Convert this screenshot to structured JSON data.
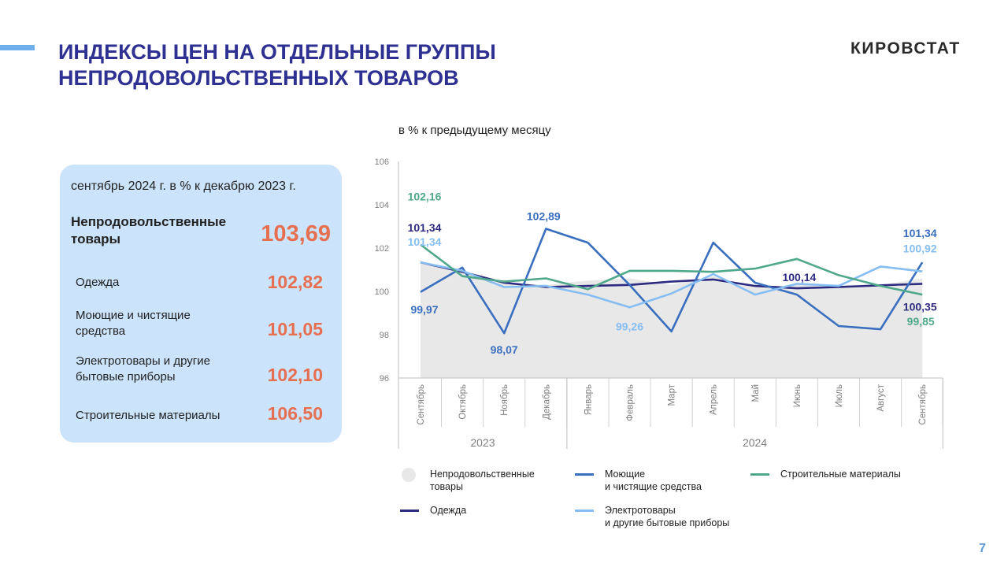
{
  "header": {
    "title_line1": "ИНДЕКСЫ ЦЕН НА ОТДЕЛЬНЫЕ ГРУППЫ",
    "title_line2": "НЕПРОДОВОЛЬСТВЕННЫХ ТОВАРОВ",
    "logo": "КИРОВСТАТ"
  },
  "page_number": "7",
  "summary": {
    "heading": "сентябрь 2024 г. в % к декабрю 2023 г.",
    "main": {
      "label_line1": "Непродовольственные",
      "label_line2": "товары",
      "value": "103,69"
    },
    "items": [
      {
        "label_line1": "Одежда",
        "label_line2": "",
        "value": "102,82"
      },
      {
        "label_line1": "Моющие и чистящие",
        "label_line2": "средства",
        "value": "101,05"
      },
      {
        "label_line1": "Электротовары и другие",
        "label_line2": "бытовые приборы",
        "value": "102,10"
      },
      {
        "label_line1": "Строительные материалы",
        "label_line2": "",
        "value": "106,50"
      }
    ]
  },
  "chart_data": {
    "type": "line",
    "subtitle": "в % к предыдущему месяцу",
    "categories": [
      "Сентябрь",
      "Октябрь",
      "Ноябрь",
      "Декабрь",
      "Январь",
      "Февраль",
      "Март",
      "Апрель",
      "Май",
      "Июнь",
      "Июль",
      "Август",
      "Сентябрь"
    ],
    "year_groups": [
      {
        "label": "2023",
        "from": 0,
        "to": 3
      },
      {
        "label": "2024",
        "from": 4,
        "to": 12
      }
    ],
    "ylim": [
      96,
      106
    ],
    "yticks": [
      96,
      98,
      100,
      102,
      104,
      106
    ],
    "series": [
      {
        "name": "Непродовольственные товары",
        "kind": "area",
        "color": "#e8e8e8",
        "values": [
          101.3,
          100.9,
          100.4,
          100.3,
          100.5,
          100.6,
          100.3,
          100.7,
          100.2,
          100.3,
          100.3,
          100.3,
          100.6
        ]
      },
      {
        "name": "Одежда",
        "kind": "line",
        "color": "#2e2a80",
        "values": [
          101.34,
          100.9,
          100.4,
          100.2,
          100.25,
          100.3,
          100.45,
          100.55,
          100.25,
          100.14,
          100.2,
          100.28,
          100.35
        ]
      },
      {
        "name": "Моющие и чистящие средства",
        "kind": "line",
        "color": "#3a6fbf",
        "values": [
          99.97,
          101.1,
          98.07,
          102.89,
          102.25,
          100.3,
          98.15,
          102.25,
          100.4,
          99.85,
          98.4,
          98.25,
          101.34
        ]
      },
      {
        "name": "Электротовары и другие бытовые приборы",
        "kind": "line",
        "color": "#86bdf2",
        "values": [
          101.34,
          100.95,
          100.2,
          100.25,
          99.85,
          99.26,
          99.9,
          100.8,
          99.85,
          100.35,
          100.25,
          101.15,
          100.92
        ]
      },
      {
        "name": "Строительные материалы",
        "kind": "line",
        "color": "#4fa88c",
        "values": [
          102.16,
          100.7,
          100.45,
          100.6,
          100.1,
          100.95,
          100.95,
          100.9,
          101.05,
          101.5,
          100.75,
          100.25,
          99.85
        ]
      }
    ],
    "data_labels": [
      {
        "text": "102,16",
        "series": 4,
        "index": 0,
        "dx": 5,
        "dy": -56,
        "color": "#4fa88c"
      },
      {
        "text": "101,34",
        "series": 1,
        "index": 0,
        "dx": 5,
        "dy": -39,
        "color": "#2e2a80"
      },
      {
        "text": "101,34",
        "series": 3,
        "index": 0,
        "dx": 5,
        "dy": -21,
        "color": "#86bdf2"
      },
      {
        "text": "99,97",
        "series": 2,
        "index": 0,
        "dx": 5,
        "dy": 27,
        "color": "#3a6fbf"
      },
      {
        "text": "98,07",
        "series": 2,
        "index": 2,
        "dx": 0,
        "dy": 26,
        "color": "#3a6fbf"
      },
      {
        "text": "102,89",
        "series": 2,
        "index": 3,
        "dx": -3,
        "dy": -11,
        "color": "#3a6fbf"
      },
      {
        "text": "99,26",
        "series": 3,
        "index": 5,
        "dx": 0,
        "dy": 29,
        "color": "#86bdf2"
      },
      {
        "text": "100,14",
        "series": 1,
        "index": 9,
        "dx": 3,
        "dy": -9,
        "color": "#2e2a80"
      },
      {
        "text": "101,34",
        "series": 2,
        "index": 12,
        "dx": -3,
        "dy": -32,
        "color": "#3a6fbf"
      },
      {
        "text": "100,92",
        "series": 3,
        "index": 12,
        "dx": -3,
        "dy": -24,
        "color": "#86bdf2"
      },
      {
        "text": "100,35",
        "series": 1,
        "index": 12,
        "dx": -3,
        "dy": 34,
        "color": "#2e2a80"
      },
      {
        "text": "99,85",
        "series": 4,
        "index": 12,
        "dx": -2,
        "dy": 39,
        "color": "#4fa88c"
      }
    ],
    "legend": [
      {
        "series": 0,
        "line1": "Непродовольственные",
        "line2": "товары"
      },
      {
        "series": 2,
        "line1": "Моющие",
        "line2": "и чистящие средства"
      },
      {
        "series": 4,
        "line1": "Строительные материалы",
        "line2": ""
      },
      {
        "series": 1,
        "line1": "Одежда",
        "line2": ""
      },
      {
        "series": 3,
        "line1": "Электротовары",
        "line2": "и другие бытовые приборы"
      }
    ]
  }
}
